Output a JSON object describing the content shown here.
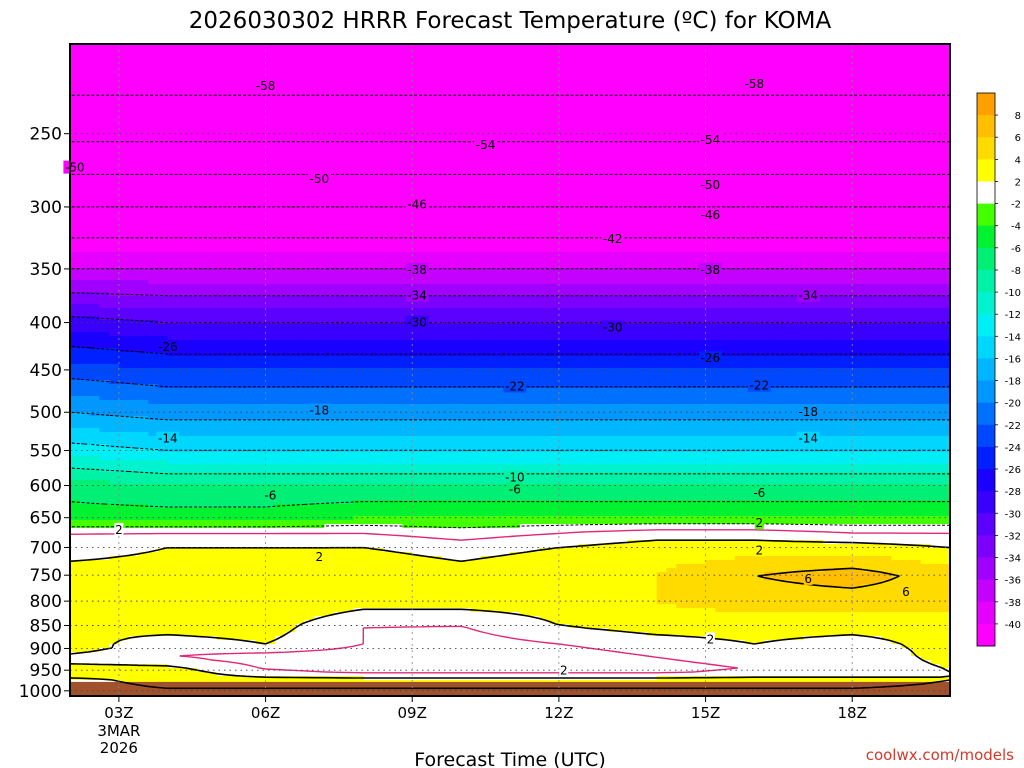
{
  "chart_data": {
    "type": "heatmap",
    "title": "2026030302 HRRR Forecast Temperature (ºC) for KOMA",
    "xlabel": "Forecast Time (UTC)",
    "ylabel": "",
    "y_scale": "log",
    "y_axis": "pressure (mb)",
    "ylim": [
      1013,
      200
    ],
    "xlim": [
      "02Z",
      "20Z"
    ],
    "grid": true,
    "y_ticks": [
      250,
      300,
      350,
      400,
      450,
      500,
      550,
      600,
      650,
      700,
      750,
      800,
      850,
      900,
      950,
      1000
    ],
    "x_ticks": [
      {
        "hour": 3,
        "label": "03Z",
        "sub": [
          "3MAR",
          "2026"
        ]
      },
      {
        "hour": 6,
        "label": "06Z",
        "sub": []
      },
      {
        "hour": 9,
        "label": "09Z",
        "sub": []
      },
      {
        "hour": 12,
        "label": "12Z",
        "sub": []
      },
      {
        "hour": 15,
        "label": "15Z",
        "sub": []
      },
      {
        "hour": 18,
        "label": "18Z",
        "sub": []
      }
    ],
    "credit": "coolwx.com/models",
    "colorbar": {
      "position": "right",
      "labels": [
        "8",
        "6",
        "4",
        "2",
        "-2",
        "-4",
        "-6",
        "-8",
        "-10",
        "-12",
        "-14",
        "-16",
        "-18",
        "-20",
        "-22",
        "-24",
        "-26",
        "-28",
        "-30",
        "-32",
        "-34",
        "-36",
        "-38",
        "-40"
      ],
      "bins": [
        {
          "range": [
            8,
            10
          ],
          "color": "#ffa000"
        },
        {
          "range": [
            6,
            8
          ],
          "color": "#ffbf00"
        },
        {
          "range": [
            4,
            6
          ],
          "color": "#ffdb00"
        },
        {
          "range": [
            2,
            4
          ],
          "color": "#ffff00"
        },
        {
          "range": [
            -2,
            2
          ],
          "color": "#ffffff"
        },
        {
          "range": [
            -4,
            -2
          ],
          "color": "#44ff00"
        },
        {
          "range": [
            -6,
            -4
          ],
          "color": "#00f230"
        },
        {
          "range": [
            -8,
            -6
          ],
          "color": "#00ef74"
        },
        {
          "range": [
            -10,
            -8
          ],
          "color": "#00f2a6"
        },
        {
          "range": [
            -12,
            -10
          ],
          "color": "#00f2cf"
        },
        {
          "range": [
            -14,
            -12
          ],
          "color": "#00eef5"
        },
        {
          "range": [
            -16,
            -14
          ],
          "color": "#00d7ff"
        },
        {
          "range": [
            -18,
            -16
          ],
          "color": "#00b7ff"
        },
        {
          "range": [
            -20,
            -18
          ],
          "color": "#0097ff"
        },
        {
          "range": [
            -22,
            -20
          ],
          "color": "#0070ff"
        },
        {
          "range": [
            -24,
            -22
          ],
          "color": "#0048ff"
        },
        {
          "range": [
            -26,
            -24
          ],
          "color": "#0020ff"
        },
        {
          "range": [
            -28,
            -26
          ],
          "color": "#1a00ff"
        },
        {
          "range": [
            -30,
            -28
          ],
          "color": "#3a00ff"
        },
        {
          "range": [
            -32,
            -30
          ],
          "color": "#5c00ff"
        },
        {
          "range": [
            -34,
            -32
          ],
          "color": "#7d00ff"
        },
        {
          "range": [
            -36,
            -34
          ],
          "color": "#a000ff"
        },
        {
          "range": [
            -38,
            -36
          ],
          "color": "#c400ff"
        },
        {
          "range": [
            -40,
            -38
          ],
          "color": "#e600ff"
        },
        {
          "range": [
            -60,
            -40
          ],
          "color": "#ff00ff"
        }
      ]
    },
    "surface_color": "#a0522d",
    "profiles": [
      {
        "hour": 2,
        "T": [
          [
            1013,
            1
          ],
          [
            975,
            1
          ],
          [
            955,
            4
          ],
          [
            925,
            1
          ],
          [
            900,
            3
          ],
          [
            850,
            2
          ],
          [
            800,
            3
          ],
          [
            750,
            3
          ],
          [
            700,
            1
          ],
          [
            675,
            0
          ],
          [
            650,
            -5
          ],
          [
            600,
            -7
          ],
          [
            550,
            -13
          ],
          [
            500,
            -18
          ],
          [
            450,
            -23
          ],
          [
            400,
            -29
          ],
          [
            350,
            -38
          ],
          [
            300,
            -46
          ],
          [
            250,
            -55
          ],
          [
            200,
            -62
          ]
        ]
      },
      {
        "hour": 4,
        "T": [
          [
            1013,
            1
          ],
          [
            975,
            3
          ],
          [
            950,
            3
          ],
          [
            920,
            0
          ],
          [
            890,
            1
          ],
          [
            850,
            3
          ],
          [
            800,
            4
          ],
          [
            750,
            3
          ],
          [
            700,
            2
          ],
          [
            675,
            0
          ],
          [
            650,
            -5
          ],
          [
            600,
            -8
          ],
          [
            550,
            -14
          ],
          [
            500,
            -19
          ],
          [
            450,
            -24
          ],
          [
            400,
            -30
          ],
          [
            350,
            -38
          ],
          [
            300,
            -46
          ],
          [
            250,
            -55
          ],
          [
            200,
            -62
          ]
        ]
      },
      {
        "hour": 6,
        "T": [
          [
            1013,
            1
          ],
          [
            975,
            3
          ],
          [
            950,
            0
          ],
          [
            920,
            -1
          ],
          [
            890,
            2
          ],
          [
            850,
            3
          ],
          [
            800,
            4
          ],
          [
            750,
            3
          ],
          [
            700,
            2
          ],
          [
            675,
            0
          ],
          [
            650,
            -5
          ],
          [
            600,
            -8
          ],
          [
            550,
            -14
          ],
          [
            500,
            -19
          ],
          [
            450,
            -24
          ],
          [
            400,
            -30
          ],
          [
            350,
            -38
          ],
          [
            300,
            -46
          ],
          [
            250,
            -55
          ],
          [
            200,
            -62
          ]
        ]
      },
      {
        "hour": 8,
        "T": [
          [
            1013,
            1
          ],
          [
            975,
            3
          ],
          [
            950,
            -1
          ],
          [
            920,
            -1
          ],
          [
            890,
            0
          ],
          [
            850,
            0
          ],
          [
            800,
            3
          ],
          [
            750,
            4
          ],
          [
            700,
            2
          ],
          [
            675,
            0
          ],
          [
            650,
            -4
          ],
          [
            600,
            -8
          ],
          [
            550,
            -14
          ],
          [
            500,
            -19
          ],
          [
            450,
            -24
          ],
          [
            400,
            -30
          ],
          [
            350,
            -38
          ],
          [
            300,
            -46
          ],
          [
            250,
            -55
          ],
          [
            200,
            -62
          ]
        ]
      },
      {
        "hour": 10,
        "T": [
          [
            1013,
            1
          ],
          [
            975,
            3
          ],
          [
            950,
            -1
          ],
          [
            920,
            -1
          ],
          [
            890,
            -1
          ],
          [
            850,
            0
          ],
          [
            800,
            3
          ],
          [
            750,
            3
          ],
          [
            700,
            1
          ],
          [
            675,
            -1
          ],
          [
            650,
            -4
          ],
          [
            600,
            -8
          ],
          [
            550,
            -14
          ],
          [
            500,
            -19
          ],
          [
            450,
            -24
          ],
          [
            400,
            -30
          ],
          [
            350,
            -38
          ],
          [
            300,
            -46
          ],
          [
            250,
            -55
          ],
          [
            200,
            -62
          ]
        ]
      },
      {
        "hour": 12,
        "T": [
          [
            1013,
            1
          ],
          [
            975,
            3
          ],
          [
            950,
            -1
          ],
          [
            920,
            -1
          ],
          [
            890,
            0
          ],
          [
            850,
            2
          ],
          [
            800,
            3
          ],
          [
            750,
            4
          ],
          [
            700,
            2
          ],
          [
            675,
            0
          ],
          [
            650,
            -4
          ],
          [
            600,
            -8
          ],
          [
            550,
            -14
          ],
          [
            500,
            -19
          ],
          [
            450,
            -24
          ],
          [
            400,
            -30
          ],
          [
            350,
            -38
          ],
          [
            300,
            -46
          ],
          [
            250,
            -55
          ],
          [
            200,
            -62
          ]
        ]
      },
      {
        "hour": 14,
        "T": [
          [
            1013,
            1
          ],
          [
            975,
            3
          ],
          [
            950,
            -1
          ],
          [
            920,
            0
          ],
          [
            890,
            1
          ],
          [
            850,
            3
          ],
          [
            800,
            4
          ],
          [
            750,
            4
          ],
          [
            700,
            3
          ],
          [
            675,
            1
          ],
          [
            650,
            -4
          ],
          [
            600,
            -8
          ],
          [
            550,
            -14
          ],
          [
            500,
            -19
          ],
          [
            450,
            -24
          ],
          [
            400,
            -30
          ],
          [
            350,
            -38
          ],
          [
            300,
            -46
          ],
          [
            250,
            -55
          ],
          [
            200,
            -62
          ]
        ]
      },
      {
        "hour": 16,
        "T": [
          [
            1013,
            1
          ],
          [
            975,
            3
          ],
          [
            950,
            0
          ],
          [
            920,
            1
          ],
          [
            890,
            2
          ],
          [
            850,
            3
          ],
          [
            800,
            5
          ],
          [
            750,
            6
          ],
          [
            700,
            3
          ],
          [
            675,
            1
          ],
          [
            650,
            -4
          ],
          [
            600,
            -8
          ],
          [
            550,
            -14
          ],
          [
            500,
            -19
          ],
          [
            450,
            -24
          ],
          [
            400,
            -30
          ],
          [
            350,
            -38
          ],
          [
            300,
            -46
          ],
          [
            250,
            -55
          ],
          [
            200,
            -62
          ]
        ]
      },
      {
        "hour": 18,
        "T": [
          [
            1013,
            1
          ],
          [
            975,
            3
          ],
          [
            950,
            0
          ],
          [
            920,
            0
          ],
          [
            890,
            1
          ],
          [
            850,
            3
          ],
          [
            800,
            5
          ],
          [
            750,
            7
          ],
          [
            700,
            3
          ],
          [
            675,
            0
          ],
          [
            650,
            -4
          ],
          [
            600,
            -8
          ],
          [
            550,
            -14
          ],
          [
            500,
            -19
          ],
          [
            450,
            -24
          ],
          [
            400,
            -30
          ],
          [
            350,
            -38
          ],
          [
            300,
            -46
          ],
          [
            250,
            -55
          ],
          [
            200,
            -62
          ]
        ]
      },
      {
        "hour": 20,
        "T": [
          [
            1013,
            1
          ],
          [
            975,
            2
          ],
          [
            950,
            2
          ],
          [
            920,
            3
          ],
          [
            890,
            3
          ],
          [
            850,
            3
          ],
          [
            800,
            5
          ],
          [
            750,
            5
          ],
          [
            700,
            2
          ],
          [
            675,
            0
          ],
          [
            650,
            -4
          ],
          [
            600,
            -8
          ],
          [
            550,
            -14
          ],
          [
            500,
            -19
          ],
          [
            450,
            -24
          ],
          [
            400,
            -30
          ],
          [
            350,
            -38
          ],
          [
            300,
            -46
          ],
          [
            250,
            -55
          ],
          [
            200,
            -62
          ]
        ]
      }
    ],
    "contour_labels": [
      {
        "hour": 6.0,
        "p": 222,
        "text": "-58"
      },
      {
        "hour": 16.0,
        "p": 221,
        "text": "-58"
      },
      {
        "hour": 10.5,
        "p": 257,
        "text": "-54"
      },
      {
        "hour": 15.1,
        "p": 254,
        "text": "-54"
      },
      {
        "hour": 2.1,
        "p": 272,
        "text": "-50"
      },
      {
        "hour": 7.1,
        "p": 280,
        "text": "-50"
      },
      {
        "hour": 15.1,
        "p": 284,
        "text": "-50"
      },
      {
        "hour": 9.1,
        "p": 298,
        "text": "-46"
      },
      {
        "hour": 15.1,
        "p": 306,
        "text": "-46"
      },
      {
        "hour": 13.1,
        "p": 325,
        "text": "-42"
      },
      {
        "hour": 9.1,
        "p": 351,
        "text": "-38"
      },
      {
        "hour": 15.1,
        "p": 351,
        "text": "-38"
      },
      {
        "hour": 9.1,
        "p": 374,
        "text": "-34"
      },
      {
        "hour": 17.1,
        "p": 374,
        "text": "-34"
      },
      {
        "hour": 9.1,
        "p": 400,
        "text": "-30"
      },
      {
        "hour": 13.1,
        "p": 405,
        "text": "-30"
      },
      {
        "hour": 4.0,
        "p": 425,
        "text": "-26"
      },
      {
        "hour": 15.1,
        "p": 437,
        "text": "-26"
      },
      {
        "hour": 11.1,
        "p": 469,
        "text": "-22"
      },
      {
        "hour": 16.1,
        "p": 468,
        "text": "-22"
      },
      {
        "hour": 7.1,
        "p": 498,
        "text": "-18"
      },
      {
        "hour": 17.1,
        "p": 500,
        "text": "-18"
      },
      {
        "hour": 4.0,
        "p": 534,
        "text": "-14"
      },
      {
        "hour": 17.1,
        "p": 534,
        "text": "-14"
      },
      {
        "hour": 11.1,
        "p": 588,
        "text": "-10"
      },
      {
        "hour": 6.1,
        "p": 615,
        "text": "-6"
      },
      {
        "hour": 11.1,
        "p": 606,
        "text": "-6"
      },
      {
        "hour": 16.1,
        "p": 611,
        "text": "-6"
      },
      {
        "hour": 3.0,
        "p": 670,
        "text": "2"
      },
      {
        "hour": 7.1,
        "p": 717,
        "text": "2"
      },
      {
        "hour": 16.1,
        "p": 659,
        "text": "2"
      },
      {
        "hour": 16.1,
        "p": 705,
        "text": "2"
      },
      {
        "hour": 17.1,
        "p": 757,
        "text": "6"
      },
      {
        "hour": 19.1,
        "p": 782,
        "text": "6"
      },
      {
        "hour": 15.1,
        "p": 880,
        "text": "2"
      },
      {
        "hour": 12.1,
        "p": 951,
        "text": "2"
      }
    ]
  }
}
